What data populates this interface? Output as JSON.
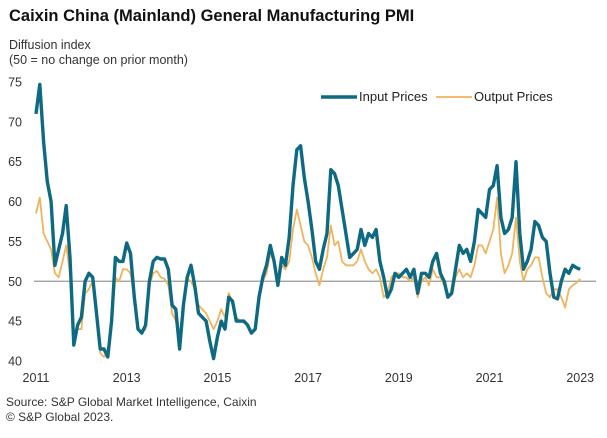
{
  "title": "Caixin China (Mainland) General Manufacturing PMI",
  "ylabel_line1": "Diffusion index",
  "ylabel_line2": "(50 = no change on prior month)",
  "source_line1": "Source: S&P Global Market Intelligence, Caixin",
  "source_line2": "© S&P Global 2023.",
  "chart_data": {
    "type": "line",
    "title": "Caixin China (Mainland) General Manufacturing PMI",
    "xlabel": "",
    "ylabel": "Diffusion index (50 = no change on prior month)",
    "ylim": [
      40,
      75
    ],
    "yticks": [
      40,
      45,
      50,
      55,
      60,
      65,
      70,
      75
    ],
    "xticks": [
      "2011",
      "2013",
      "2015",
      "2017",
      "2019",
      "2021",
      "2023"
    ],
    "xrange": [
      "2011-01",
      "2023-02"
    ],
    "reference_line": 50,
    "grid": false,
    "legend_position": "top-right",
    "colors": {
      "input": "#0e6a82",
      "output": "#f0b35e",
      "reference": "#999999"
    },
    "series": [
      {
        "name": "Input Prices",
        "start": "2011-01",
        "values": [
          71.0,
          74.7,
          67.5,
          62.5,
          60.0,
          52.0,
          54.0,
          56.0,
          59.5,
          53.0,
          42.0,
          44.5,
          45.5,
          50.0,
          51.0,
          50.5,
          46.0,
          41.5,
          41.5,
          40.5,
          45.0,
          53.0,
          52.5,
          52.5,
          54.8,
          53.5,
          48.0,
          44.0,
          43.5,
          44.5,
          50.0,
          52.5,
          53.0,
          52.8,
          52.8,
          51.5,
          47.0,
          46.5,
          41.5,
          47.0,
          50.5,
          52.0,
          49.5,
          46.0,
          45.5,
          45.0,
          42.5,
          40.3,
          43.0,
          45.0,
          44.0,
          48.0,
          47.5,
          45.0,
          45.0,
          45.0,
          44.5,
          43.5,
          44.0,
          48.0,
          50.5,
          52.0,
          54.5,
          52.5,
          49.5,
          53.0,
          52.0,
          55.5,
          62.0,
          66.5,
          67.0,
          63.0,
          60.0,
          56.5,
          52.5,
          51.5,
          54.0,
          56.0,
          64.0,
          63.5,
          62.0,
          59.0,
          56.0,
          53.0,
          53.5,
          54.0,
          56.5,
          54.5,
          56.0,
          55.5,
          56.5,
          52.5,
          50.5,
          48.0,
          49.0,
          51.0,
          50.5,
          51.0,
          51.5,
          50.5,
          51.5,
          48.5,
          51.0,
          51.0,
          50.5,
          52.5,
          53.5,
          51.0,
          50.0,
          48.0,
          48.5,
          51.5,
          54.5,
          53.5,
          54.0,
          52.5,
          55.0,
          59.0,
          58.5,
          58.0,
          61.5,
          62.0,
          64.5,
          58.0,
          56.0,
          56.5,
          58.0,
          65.0,
          56.0,
          51.5,
          52.5,
          54.0,
          57.5,
          57.0,
          55.5,
          55.0,
          51.0,
          48.0,
          47.8,
          50.0,
          51.5,
          51.0,
          52.0,
          51.7,
          51.5
        ]
      },
      {
        "name": "Output Prices",
        "start": "2011-01",
        "values": [
          58.5,
          60.5,
          56.0,
          55.0,
          54.0,
          51.0,
          50.5,
          52.5,
          54.5,
          51.0,
          43.5,
          44.0,
          44.0,
          48.5,
          49.0,
          50.0,
          46.5,
          41.0,
          40.5,
          41.0,
          45.0,
          50.5,
          50.0,
          51.5,
          51.5,
          51.0,
          48.0,
          44.0,
          43.5,
          44.0,
          49.5,
          51.0,
          51.3,
          50.5,
          50.3,
          49.5,
          46.0,
          45.0,
          42.0,
          47.0,
          50.3,
          50.0,
          49.0,
          47.0,
          46.5,
          46.0,
          45.0,
          44.0,
          45.0,
          46.5,
          45.5,
          48.5,
          47.5,
          45.5,
          45.0,
          44.8,
          44.5,
          43.5,
          44.0,
          47.5,
          50.0,
          51.0,
          53.5,
          52.5,
          50.0,
          52.0,
          51.5,
          52.5,
          56.5,
          59.0,
          57.0,
          55.0,
          54.5,
          53.0,
          51.0,
          49.5,
          51.5,
          53.0,
          57.0,
          54.5,
          55.0,
          52.5,
          52.0,
          52.0,
          52.0,
          52.5,
          54.0,
          52.5,
          51.5,
          51.0,
          51.5,
          50.5,
          48.0,
          48.5,
          50.5,
          51.0,
          51.0,
          50.5,
          50.5,
          50.0,
          50.5,
          48.0,
          50.0,
          50.5,
          49.5,
          51.5,
          50.5,
          50.5,
          49.5,
          48.0,
          48.3,
          50.5,
          51.5,
          50.5,
          51.0,
          50.5,
          52.0,
          54.5,
          54.5,
          53.5,
          55.0,
          56.5,
          60.5,
          53.5,
          51.0,
          52.0,
          53.5,
          58.0,
          52.5,
          50.0,
          51.5,
          52.0,
          53.0,
          53.0,
          50.5,
          48.5,
          48.0,
          49.0,
          49.0,
          48.0,
          46.7,
          49.0,
          49.5,
          49.8,
          50.3
        ]
      }
    ]
  }
}
